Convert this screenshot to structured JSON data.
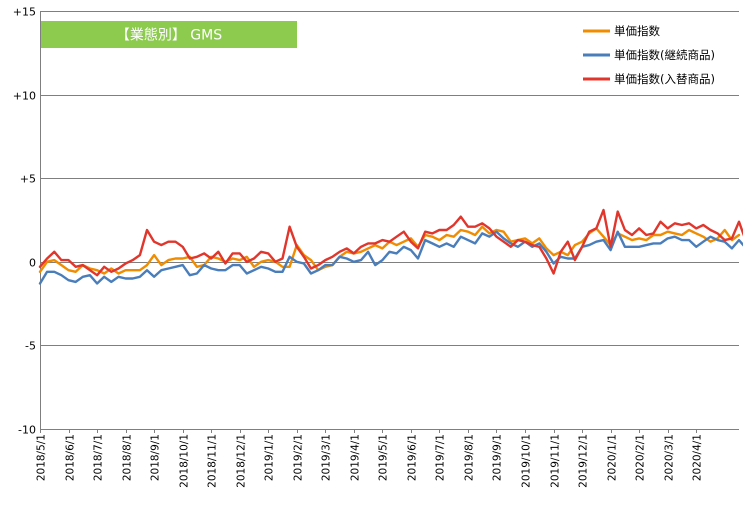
{
  "chart_data": {
    "type": "line",
    "title": "【業態別】 GMS",
    "xlabel": "",
    "ylabel": "",
    "ylim": [
      -10,
      15
    ],
    "y_ticks": [
      {
        "value": 15,
        "label": "+15"
      },
      {
        "value": 10,
        "label": "+10"
      },
      {
        "value": 5,
        "label": "+5"
      },
      {
        "value": 0,
        "label": "0"
      },
      {
        "value": -5,
        "label": "-5"
      },
      {
        "value": -10,
        "label": "-10"
      }
    ],
    "grid": "horizontal",
    "legend_position": "top-right",
    "x_tick_labels": [
      "2018/5/1",
      "2018/6/1",
      "2018/7/1",
      "2018/8/1",
      "2018/9/1",
      "2018/10/1",
      "2018/11/1",
      "2018/12/1",
      "2019/1/1",
      "2019/2/1",
      "2019/3/1",
      "2019/4/1",
      "2019/5/1",
      "2019/6/1",
      "2019/7/1",
      "2019/8/1",
      "2019/9/1",
      "2019/10/1",
      "2019/11/1",
      "2019/12/1",
      "2020/1/1",
      "2020/2/1",
      "2020/3/1",
      "2020/4/1"
    ],
    "points_per_month": 4,
    "series": [
      {
        "name": "単価指数",
        "color": "#F08C00",
        "values": [
          -0.6,
          0.0,
          0.1,
          -0.2,
          -0.5,
          -0.6,
          -0.2,
          -0.4,
          -0.5,
          -0.7,
          -0.4,
          -0.7,
          -0.5,
          -0.5,
          -0.5,
          -0.2,
          0.4,
          -0.2,
          0.1,
          0.2,
          0.2,
          0.3,
          -0.3,
          -0.2,
          0.3,
          0.2,
          0.0,
          0.2,
          0.1,
          0.3,
          -0.3,
          0.0,
          0.1,
          0.0,
          -0.3,
          -0.3,
          1.0,
          0.4,
          0.1,
          -0.5,
          -0.3,
          -0.2,
          0.3,
          0.6,
          0.5,
          0.6,
          0.8,
          1.0,
          0.8,
          1.2,
          1.0,
          1.2,
          1.4,
          0.9,
          1.6,
          1.5,
          1.3,
          1.6,
          1.5,
          1.9,
          1.8,
          1.6,
          2.1,
          1.7,
          1.9,
          1.8,
          1.2,
          1.3,
          1.4,
          1.1,
          1.4,
          0.8,
          0.4,
          0.6,
          0.4,
          1.0,
          1.2,
          1.7,
          2.0,
          1.5,
          1.0,
          1.7,
          1.5,
          1.3,
          1.4,
          1.3,
          1.6,
          1.6,
          1.8,
          1.7,
          1.6,
          1.9,
          1.7,
          1.5,
          1.2,
          1.4,
          1.9,
          1.3,
          1.6
        ]
      },
      {
        "name": "単価指数(継続商品)",
        "color": "#4A7EBB",
        "values": [
          -1.3,
          -0.6,
          -0.6,
          -0.8,
          -1.1,
          -1.2,
          -0.9,
          -0.8,
          -1.3,
          -0.9,
          -1.2,
          -0.9,
          -1.0,
          -1.0,
          -0.9,
          -0.5,
          -0.9,
          -0.5,
          -0.4,
          -0.3,
          -0.2,
          -0.8,
          -0.7,
          -0.2,
          -0.4,
          -0.5,
          -0.5,
          -0.2,
          -0.2,
          -0.7,
          -0.5,
          -0.3,
          -0.4,
          -0.6,
          -0.6,
          0.3,
          0.0,
          -0.1,
          -0.7,
          -0.5,
          -0.2,
          -0.2,
          0.3,
          0.2,
          0.0,
          0.1,
          0.6,
          -0.2,
          0.1,
          0.6,
          0.5,
          0.9,
          0.7,
          0.2,
          1.3,
          1.1,
          0.9,
          1.1,
          0.9,
          1.5,
          1.3,
          1.1,
          1.7,
          1.5,
          1.8,
          1.4,
          1.1,
          0.9,
          1.2,
          0.9,
          1.1,
          0.6,
          -0.1,
          0.3,
          0.2,
          0.2,
          0.9,
          1.0,
          1.2,
          1.3,
          0.7,
          1.8,
          0.9,
          0.9,
          0.9,
          1.0,
          1.1,
          1.1,
          1.4,
          1.5,
          1.3,
          1.3,
          0.9,
          1.2,
          1.5,
          1.3,
          1.2,
          0.8,
          1.3,
          0.8,
          1.0
        ]
      },
      {
        "name": "単価指数(入替商品)",
        "color": "#E0362C",
        "values": [
          -0.3,
          0.2,
          0.6,
          0.1,
          0.1,
          -0.3,
          -0.2,
          -0.5,
          -0.8,
          -0.3,
          -0.6,
          -0.4,
          -0.1,
          0.1,
          0.4,
          1.9,
          1.2,
          1.0,
          1.2,
          1.2,
          0.9,
          0.2,
          0.3,
          0.5,
          0.2,
          0.6,
          -0.1,
          0.5,
          0.5,
          0.0,
          0.2,
          0.6,
          0.5,
          0.0,
          0.2,
          2.1,
          0.9,
          0.3,
          -0.4,
          -0.2,
          0.1,
          0.3,
          0.6,
          0.8,
          0.5,
          0.9,
          1.1,
          1.1,
          1.3,
          1.2,
          1.5,
          1.8,
          1.2,
          0.8,
          1.8,
          1.7,
          1.9,
          1.9,
          2.2,
          2.7,
          2.1,
          2.1,
          2.3,
          2.0,
          1.5,
          1.2,
          0.9,
          1.3,
          1.2,
          1.0,
          0.9,
          0.2,
          -0.7,
          0.6,
          1.2,
          0.1,
          0.9,
          1.8,
          2.0,
          3.1,
          0.9,
          3.0,
          1.9,
          1.6,
          2.0,
          1.6,
          1.7,
          2.4,
          2.0,
          2.3,
          2.2,
          2.3,
          2.0,
          2.2,
          1.9,
          1.7,
          1.3,
          1.4,
          2.4,
          1.2,
          2.8
        ]
      }
    ]
  }
}
